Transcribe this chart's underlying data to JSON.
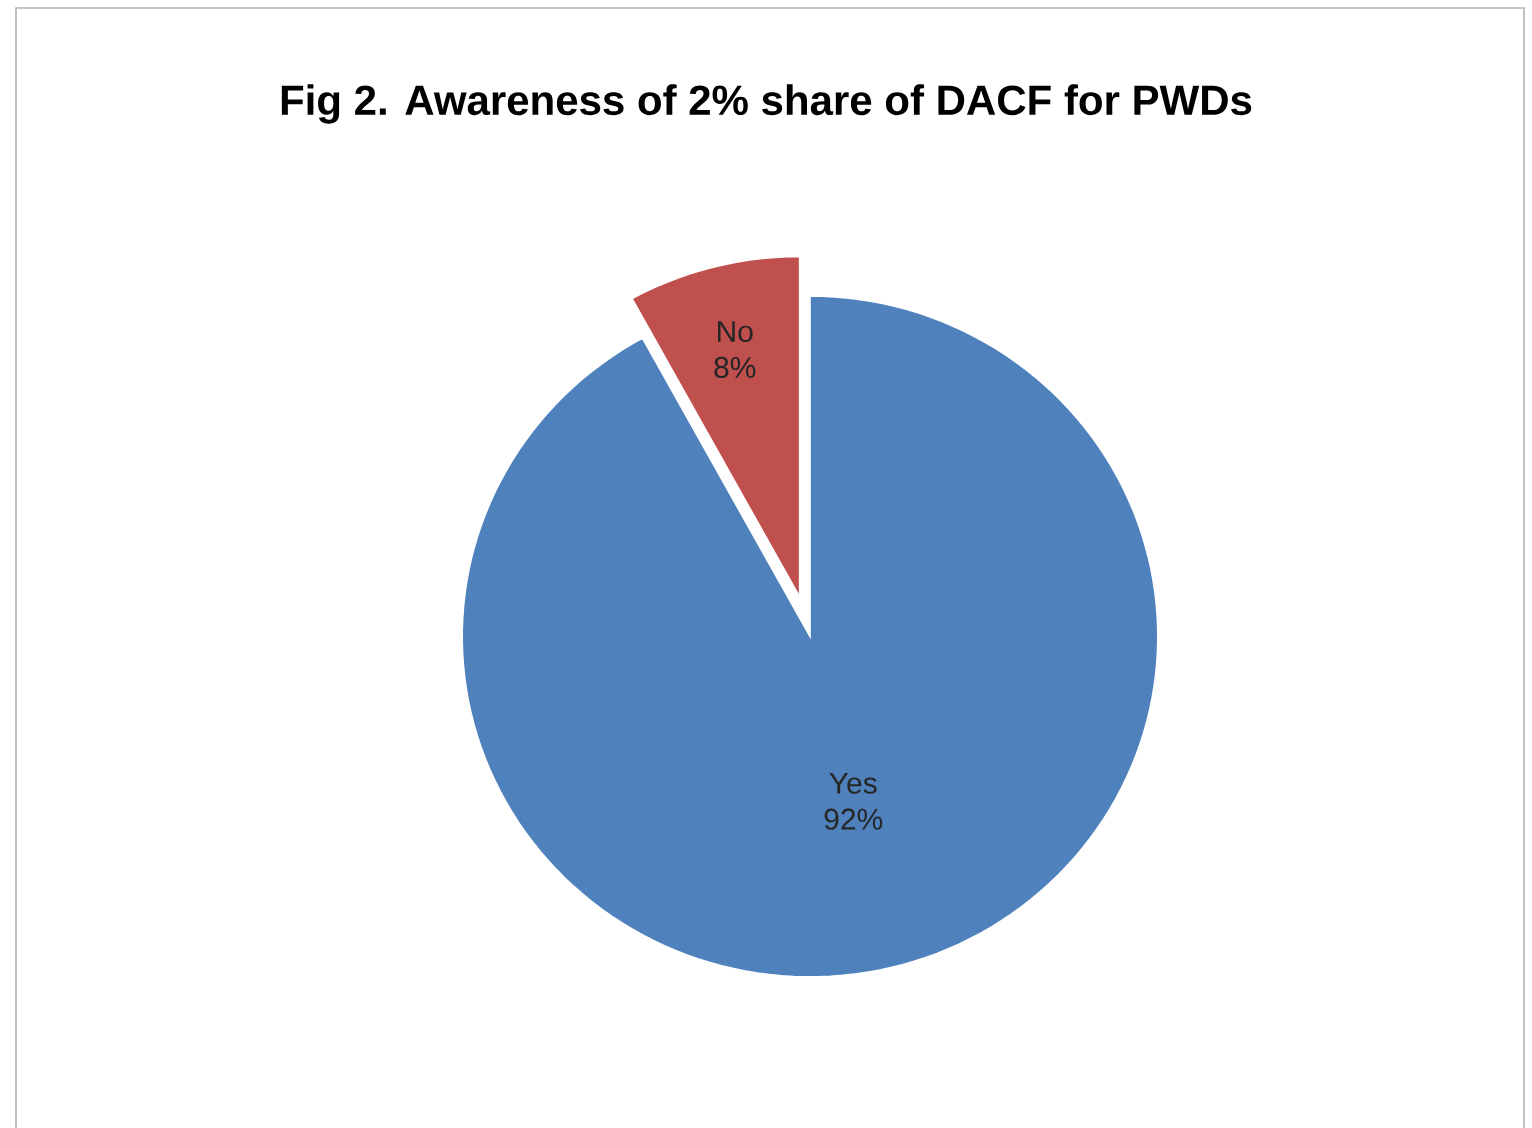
{
  "chart_data": {
    "type": "pie",
    "title": "Fig 2. Awareness of 2% share of DACF for PWDs",
    "categories": [
      "Yes",
      "No"
    ],
    "values": [
      92,
      8
    ],
    "value_labels": [
      "92%",
      "8%"
    ],
    "colors": [
      "#4f81bd",
      "#c0504d"
    ]
  }
}
